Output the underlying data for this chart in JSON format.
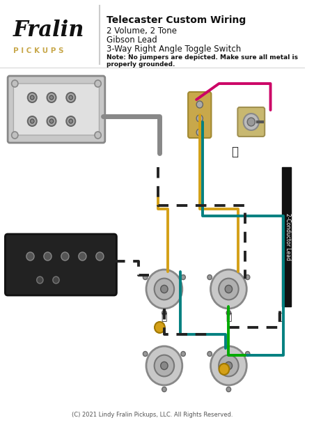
{
  "title": "Telecaster Custom Wiring",
  "subtitle_lines": [
    "2 Volume, 2 Tone",
    "Gibson Lead",
    "3-Way Right Angle Toggle Switch"
  ],
  "note": "Note: No jumpers are depicted. Make sure all metal is\nproperly grounded.",
  "brand_name": "Fralin",
  "brand_sub": "PICKUPS",
  "copyright": "(C) 2021 Lindy Fralin Pickups, LLC. All Rights Reserved.",
  "bg_color": "#ffffff",
  "wire_colors": {
    "gold": "#d4a017",
    "teal": "#008080",
    "magenta": "#cc0066",
    "black": "#222222",
    "gray": "#888888",
    "green": "#00aa00",
    "red": "#cc0000",
    "dashed": "#222222"
  },
  "label_2conductor": "2-Conductor Lead"
}
